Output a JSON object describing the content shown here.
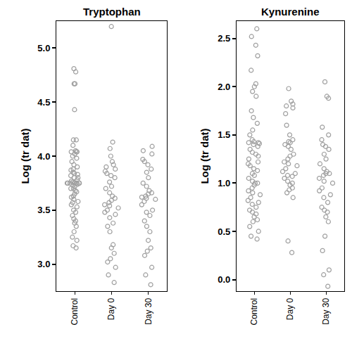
{
  "chart_data": [
    {
      "type": "scatter",
      "title": "Tryptophan",
      "y_label": "Log (tr dat)",
      "categories": [
        "Control",
        "Day 0",
        "Day 30"
      ],
      "values": [
        [
          4.81,
          4.78,
          4.67,
          4.67,
          4.43,
          4.15,
          4.15,
          4.1,
          4.05,
          4.04,
          4.04,
          4.04,
          4.02,
          4.0,
          3.98,
          3.95,
          3.92,
          3.9,
          3.88,
          3.87,
          3.85,
          3.84,
          3.83,
          3.82,
          3.8,
          3.8,
          3.78,
          3.77,
          3.76,
          3.75,
          3.75,
          3.75,
          3.75,
          3.75,
          3.75,
          3.75,
          3.74,
          3.73,
          3.72,
          3.7,
          3.7,
          3.68,
          3.67,
          3.65,
          3.63,
          3.62,
          3.6,
          3.58,
          3.57,
          3.55,
          3.53,
          3.5,
          3.48,
          3.45,
          3.42,
          3.4,
          3.38,
          3.35,
          3.3,
          3.25,
          3.22,
          3.17,
          3.15
        ],
        [
          5.2,
          4.13,
          4.07,
          4.0,
          3.95,
          3.92,
          3.9,
          3.88,
          3.86,
          3.84,
          3.82,
          3.8,
          3.76,
          3.72,
          3.7,
          3.66,
          3.63,
          3.61,
          3.59,
          3.57,
          3.55,
          3.54,
          3.52,
          3.5,
          3.48,
          3.46,
          3.43,
          3.38,
          3.35,
          3.3,
          3.18,
          3.15,
          3.1,
          3.05,
          3.02,
          2.97,
          2.9,
          2.83
        ],
        [
          4.09,
          4.05,
          4.02,
          3.97,
          3.95,
          3.92,
          3.88,
          3.85,
          3.8,
          3.75,
          3.72,
          3.68,
          3.66,
          3.65,
          3.63,
          3.62,
          3.61,
          3.6,
          3.58,
          3.55,
          3.5,
          3.48,
          3.45,
          3.4,
          3.35,
          3.3,
          3.22,
          3.15,
          3.12,
          3.08,
          2.97,
          2.9,
          2.81
        ]
      ],
      "color": "#a0a0a0",
      "marker": "circle-open",
      "grid": false,
      "ylim": [
        2.75,
        5.25
      ],
      "yticks": [
        {
          "value": 3,
          "label": "3.0"
        },
        {
          "value": 3.5,
          "label": "3.5"
        },
        {
          "value": 4,
          "label": "4.0"
        },
        {
          "value": 4.5,
          "label": "4.5"
        },
        {
          "value": 5,
          "label": "5.0"
        }
      ]
    },
    {
      "type": "scatter",
      "title": "Kynurenine",
      "y_label": "Log (tr dat)",
      "categories": [
        "Control",
        "Day 0",
        "Day 30"
      ],
      "values": [
        [
          2.6,
          2.52,
          2.43,
          2.32,
          2.17,
          2.03,
          2.0,
          1.95,
          1.9,
          1.75,
          1.68,
          1.62,
          1.55,
          1.5,
          1.45,
          1.43,
          1.42,
          1.42,
          1.41,
          1.4,
          1.38,
          1.35,
          1.32,
          1.3,
          1.28,
          1.25,
          1.22,
          1.2,
          1.18,
          1.15,
          1.13,
          1.1,
          1.08,
          1.05,
          1.02,
          1.0,
          1.0,
          0.98,
          0.95,
          0.92,
          0.9,
          0.88,
          0.85,
          0.82,
          0.8,
          0.78,
          0.75,
          0.72,
          0.7,
          0.68,
          0.65,
          0.62,
          0.6,
          0.55,
          0.5,
          0.45,
          0.42
        ],
        [
          1.98,
          1.85,
          1.82,
          1.8,
          1.78,
          1.72,
          1.6,
          1.5,
          1.45,
          1.43,
          1.42,
          1.4,
          1.38,
          1.35,
          1.3,
          1.28,
          1.25,
          1.22,
          1.2,
          1.18,
          1.15,
          1.12,
          1.1,
          1.08,
          1.07,
          1.05,
          1.02,
          1.0,
          0.98,
          0.95,
          0.93,
          0.9,
          0.85,
          0.4,
          0.28
        ],
        [
          2.05,
          1.9,
          1.88,
          1.58,
          1.5,
          1.45,
          1.4,
          1.38,
          1.35,
          1.3,
          1.25,
          1.2,
          1.15,
          1.12,
          1.1,
          1.1,
          1.08,
          1.05,
          1.02,
          1.0,
          0.95,
          0.92,
          0.88,
          0.85,
          0.8,
          0.75,
          0.72,
          0.7,
          0.65,
          0.6,
          0.45,
          0.3,
          0.1,
          0.05,
          -0.07
        ]
      ],
      "color": "#a0a0a0",
      "marker": "circle-open",
      "grid": false,
      "ylim": [
        -0.12,
        2.68
      ],
      "yticks": [
        {
          "value": 0,
          "label": "0.0"
        },
        {
          "value": 0.5,
          "label": "0.5"
        },
        {
          "value": 1,
          "label": "1.0"
        },
        {
          "value": 1.5,
          "label": "1.5"
        },
        {
          "value": 2,
          "label": "2.0"
        },
        {
          "value": 2.5,
          "label": "2.5"
        }
      ]
    }
  ]
}
